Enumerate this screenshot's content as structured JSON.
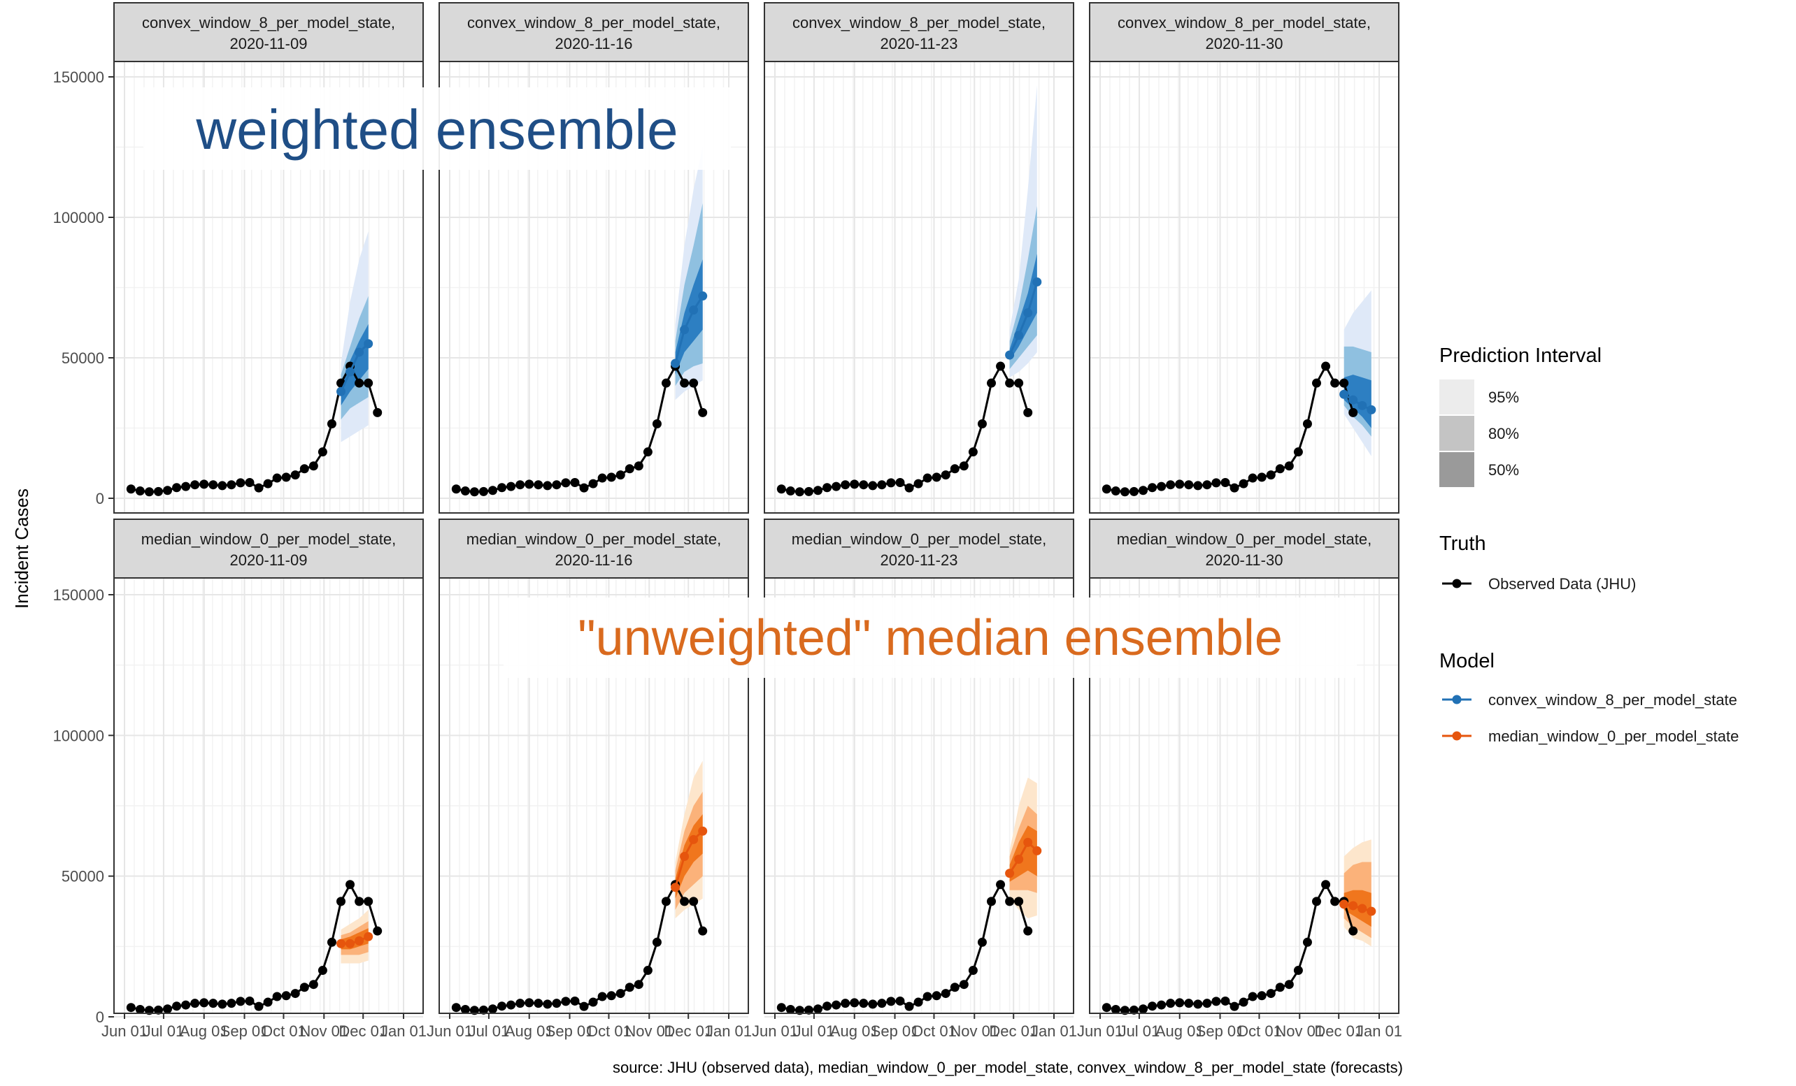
{
  "chart_data": {
    "type": "line",
    "y_axis_title": "Incident Cases",
    "y_ticks": [
      0,
      50000,
      100000,
      150000
    ],
    "y_tick_labels": [
      "0",
      "50000",
      "100000",
      "150000"
    ],
    "ylim": [
      0,
      150000
    ],
    "x_tick_labels": [
      "Jun 01",
      "Jul 01",
      "Aug 01",
      "Sep 01",
      "Oct 01",
      "Nov 01",
      "Dec 01",
      "Jan 01"
    ],
    "caption": "source: JHU (observed data), median_window_0_per_model_state, convex_window_8_per_model_state (forecasts)",
    "overlays": {
      "top": "weighted ensemble",
      "bottom": "\"unweighted\" median ensemble"
    },
    "legend": {
      "interval_title": "Prediction Interval",
      "intervals": [
        "95%",
        "80%",
        "50%"
      ],
      "truth_title": "Truth",
      "truth_label": "Observed Data (JHU)",
      "model_title": "Model",
      "models": [
        {
          "name": "convex_window_8_per_model_state",
          "color": "#2171b5"
        },
        {
          "name": "median_window_0_per_model_state",
          "color": "#e6550d"
        }
      ]
    },
    "observed": {
      "dates": [
        "2020-06-06",
        "2020-06-13",
        "2020-06-20",
        "2020-06-27",
        "2020-07-04",
        "2020-07-11",
        "2020-07-18",
        "2020-07-25",
        "2020-08-01",
        "2020-08-08",
        "2020-08-15",
        "2020-08-22",
        "2020-08-29",
        "2020-09-05",
        "2020-09-12",
        "2020-09-19",
        "2020-09-26",
        "2020-10-03",
        "2020-10-10",
        "2020-10-17",
        "2020-10-24",
        "2020-10-31",
        "2020-11-07",
        "2020-11-14",
        "2020-11-21",
        "2020-11-28",
        "2020-12-05",
        "2020-12-12"
      ],
      "values": [
        3300,
        2600,
        2300,
        2400,
        2800,
        3800,
        4200,
        4800,
        5000,
        4800,
        4500,
        4800,
        5500,
        5600,
        3700,
        5200,
        7200,
        7500,
        8300,
        10500,
        11500,
        16500,
        26500,
        41000,
        47000,
        41000,
        41000,
        30500
      ]
    },
    "panels": [
      {
        "model": "convex_window_8_per_model_state",
        "date": "2020-11-09",
        "color": "blue",
        "obs_until": 28,
        "fc_dates": [
          "2020-11-14",
          "2020-11-21",
          "2020-11-28",
          "2020-12-05"
        ],
        "median": [
          38000,
          45000,
          52000,
          55000
        ],
        "lo95": [
          20000,
          22000,
          24000,
          26000
        ],
        "hi95": [
          48000,
          70000,
          85000,
          95000
        ],
        "lo80": [
          28000,
          32000,
          34000,
          36000
        ],
        "hi80": [
          44000,
          54000,
          64000,
          72000
        ],
        "lo50": [
          33000,
          38000,
          42000,
          46000
        ],
        "hi50": [
          41000,
          49000,
          56000,
          62000
        ]
      },
      {
        "model": "convex_window_8_per_model_state",
        "date": "2020-11-16",
        "color": "blue",
        "obs_until": 28,
        "fc_dates": [
          "2020-11-21",
          "2020-11-28",
          "2020-12-05",
          "2020-12-12"
        ],
        "median": [
          48000,
          60000,
          67000,
          72000
        ],
        "lo95": [
          35000,
          38000,
          40000,
          42000
        ],
        "hi95": [
          62000,
          90000,
          110000,
          125000
        ],
        "lo80": [
          40000,
          45000,
          47000,
          48000
        ],
        "hi80": [
          56000,
          76000,
          90000,
          105000
        ],
        "lo50": [
          44000,
          52000,
          56000,
          60000
        ],
        "hi50": [
          52000,
          66000,
          76000,
          85000
        ]
      },
      {
        "model": "convex_window_8_per_model_state",
        "date": "2020-11-23",
        "color": "blue",
        "obs_until": 28,
        "fc_dates": [
          "2020-11-28",
          "2020-12-05",
          "2020-12-12",
          "2020-12-19"
        ],
        "median": [
          51000,
          58000,
          66000,
          77000
        ],
        "lo95": [
          43000,
          45000,
          48000,
          52000
        ],
        "hi95": [
          60000,
          78000,
          110000,
          147000
        ],
        "lo80": [
          46000,
          50000,
          54000,
          58000
        ],
        "hi80": [
          56000,
          68000,
          85000,
          104000
        ],
        "lo50": [
          49000,
          54000,
          60000,
          66000
        ],
        "hi50": [
          53000,
          63000,
          73000,
          87000
        ]
      },
      {
        "model": "convex_window_8_per_model_state",
        "date": "2020-11-30",
        "color": "blue",
        "obs_until": 28,
        "fc_dates": [
          "2020-12-05",
          "2020-12-12",
          "2020-12-19",
          "2020-12-26"
        ],
        "median": [
          37000,
          35000,
          33000,
          31500
        ],
        "lo95": [
          30000,
          25000,
          20000,
          15000
        ],
        "hi95": [
          60000,
          66000,
          70000,
          74000
        ],
        "lo80": [
          33000,
          29000,
          26000,
          22000
        ],
        "hi80": [
          54000,
          54000,
          53000,
          52000
        ],
        "lo50": [
          35000,
          32000,
          29000,
          25000
        ],
        "hi50": [
          43000,
          44000,
          43000,
          42000
        ]
      },
      {
        "model": "median_window_0_per_model_state",
        "date": "2020-11-09",
        "color": "orange",
        "obs_until": 28,
        "fc_dates": [
          "2020-11-14",
          "2020-11-21",
          "2020-11-28",
          "2020-12-05"
        ],
        "median": [
          26000,
          26000,
          27000,
          28500
        ],
        "lo95": [
          19000,
          19000,
          19000,
          20000
        ],
        "hi95": [
          31000,
          33000,
          35000,
          38000
        ],
        "lo80": [
          22000,
          22000,
          22000,
          23000
        ],
        "hi80": [
          29000,
          30000,
          32000,
          34000
        ],
        "lo50": [
          24000,
          24000,
          25000,
          26000
        ],
        "hi50": [
          27500,
          28500,
          30000,
          31500
        ]
      },
      {
        "model": "median_window_0_per_model_state",
        "date": "2020-11-16",
        "color": "orange",
        "obs_until": 28,
        "fc_dates": [
          "2020-11-21",
          "2020-11-28",
          "2020-12-05",
          "2020-12-12"
        ],
        "median": [
          46000,
          57000,
          63000,
          66000
        ],
        "lo95": [
          35000,
          38000,
          40000,
          42000
        ],
        "hi95": [
          55000,
          72000,
          85000,
          91000
        ],
        "lo80": [
          38000,
          44000,
          47000,
          50000
        ],
        "hi80": [
          52000,
          66000,
          75000,
          80000
        ],
        "lo50": [
          42000,
          50000,
          55000,
          58000
        ],
        "hi50": [
          49000,
          61000,
          68000,
          72000
        ]
      },
      {
        "model": "median_window_0_per_model_state",
        "date": "2020-11-23",
        "color": "orange",
        "obs_until": 28,
        "fc_dates": [
          "2020-11-28",
          "2020-12-05",
          "2020-12-12",
          "2020-12-19"
        ],
        "median": [
          51000,
          56000,
          62000,
          59000
        ],
        "lo95": [
          42000,
          38000,
          35000,
          36000
        ],
        "hi95": [
          59000,
          75000,
          85000,
          83000
        ],
        "lo80": [
          45000,
          45000,
          45000,
          44000
        ],
        "hi80": [
          57000,
          67000,
          75000,
          72000
        ],
        "lo50": [
          48000,
          50000,
          52000,
          50000
        ],
        "hi50": [
          54000,
          62000,
          68000,
          66000
        ]
      },
      {
        "model": "median_window_0_per_model_state",
        "date": "2020-11-30",
        "color": "orange",
        "obs_until": 28,
        "fc_dates": [
          "2020-12-05",
          "2020-12-12",
          "2020-12-19",
          "2020-12-26"
        ],
        "median": [
          40000,
          39500,
          38500,
          37500
        ],
        "lo95": [
          32000,
          28000,
          27000,
          25000
        ],
        "hi95": [
          57000,
          60000,
          62000,
          63000
        ],
        "lo80": [
          35000,
          32000,
          30000,
          28000
        ],
        "hi80": [
          51000,
          54000,
          55000,
          55000
        ],
        "lo50": [
          38000,
          36000,
          34000,
          32000
        ],
        "hi50": [
          44000,
          45000,
          45000,
          44000
        ]
      }
    ]
  },
  "colors": {
    "blue_point": "#2171b5",
    "blue_50": "#2d7fc2",
    "blue_80": "#8fc0e0",
    "blue_95": "#dfe9f8",
    "orange_point": "#e6550d",
    "orange_50": "#f0761d",
    "orange_80": "#fbb27a",
    "orange_95": "#fde6cc",
    "obs": "#000000",
    "grid_major": "#e6e6e6",
    "grid_minor": "#f2f2f2",
    "strip_fill": "#d9d9d9"
  }
}
